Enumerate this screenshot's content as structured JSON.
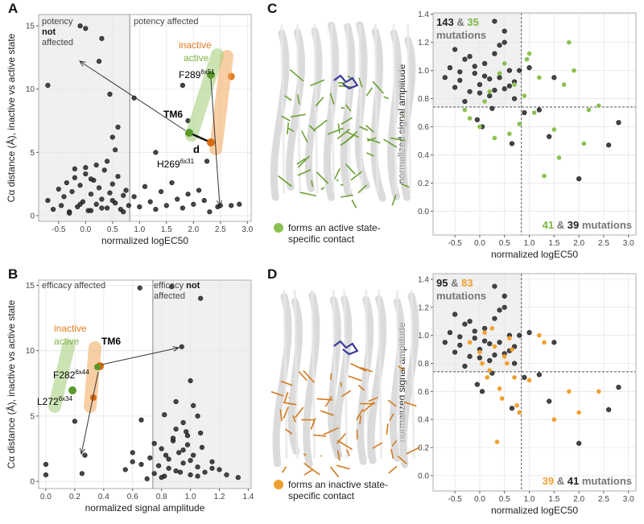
{
  "chart_data": [
    {
      "type": "scatter",
      "panel": "A",
      "x_label": "normalized logEC50",
      "y_label": "Cα distance (Å), inactive vs active state",
      "xlim": [
        -0.87,
        3.07
      ],
      "ylim": [
        -0.45,
        15.9
      ],
      "xticks": [
        -0.5,
        {
          "value": 0,
          "label": "0.0"
        },
        0.5,
        {
          "value": 1,
          "label": "1.0"
        },
        1.5,
        {
          "value": 2,
          "label": "2.0"
        },
        2.5,
        {
          "value": 3,
          "label": "3.0"
        }
      ],
      "yticks": [
        0,
        5,
        10,
        15
      ],
      "grid": true,
      "vline": 0.82,
      "shade": "left",
      "region_labels": [
        {
          "lines": [
            [
              {
                "t": "potency"
              }
            ],
            [
              {
                "b": "not"
              }
            ],
            [
              {
                "t": "affected"
              }
            ]
          ]
        },
        {
          "lines": [
            [
              {
                "t": "potency affected"
              }
            ]
          ]
        }
      ],
      "annotations": {
        "inactive": "inactive",
        "active": "active",
        "res_top": {
          "name": "F289",
          "sup": "6x51"
        },
        "helix": "TM6",
        "dist": "d",
        "res_bottom": {
          "name": "H269",
          "sup": "6x31"
        }
      },
      "series": [
        {
          "color": "#333333",
          "x": [
            -0.7,
            -0.6,
            -0.5,
            -0.45,
            -0.4,
            -0.35,
            -0.3,
            -0.25,
            -0.2,
            -0.15,
            -0.1,
            -0.05,
            0,
            0.05,
            0.1,
            0.15,
            0.2,
            0.25,
            0.3,
            0.35,
            0.4,
            0.45,
            0.5,
            0.55,
            0.6,
            0.65,
            0.7,
            0.75,
            0.8,
            -0.3,
            -0.1,
            0.1,
            0.3,
            0.5,
            0.7,
            0.9,
            1.0,
            1.1,
            1.2,
            1.3,
            1.4,
            1.5,
            1.6,
            1.7,
            1.8,
            1.9,
            2.0,
            2.1,
            2.2,
            -0.1,
            0,
            0.3,
            -0.7,
            0.25,
            0.9,
            0.45,
            1.8,
            1.9,
            2.25,
            2.7,
            2.45,
            2.5,
            2.85,
            2.3,
            0.6,
            0.5,
            0.55,
            1.3,
            0.2,
            0,
            -0.2,
            0.4,
            0.1
          ],
          "values": [
            1.2,
            0.5,
            2.1,
            0.8,
            1.5,
            2.6,
            0.3,
            1.9,
            3.0,
            0.7,
            2.4,
            1.1,
            3.3,
            0.4,
            1.7,
            2.8,
            0.9,
            2.2,
            1.3,
            3.6,
            0.6,
            1.8,
            2.5,
            1.0,
            3.1,
            0.5,
            1.6,
            2.0,
            0.8,
            0.2,
            0.9,
            0.4,
            0.6,
            1.2,
            0.3,
            1.5,
            0.7,
            2.3,
            1.1,
            0.5,
            1.9,
            0.8,
            2.6,
            1.3,
            0.6,
            1.7,
            0.9,
            2.0,
            1.2,
            15.0,
            14.8,
            14.0,
            10.3,
            12.2,
            9.3,
            9.6,
            10.3,
            7.5,
            4.3,
            0.8,
            0.7,
            0.8,
            0.9,
            0.3,
            7.0,
            6.2,
            5.2,
            5.0,
            4.0,
            3.8,
            3.7,
            4.3,
            2.9
          ]
        },
        {
          "color": "#e07b20",
          "x": [
            2.7
          ],
          "values": [
            11
          ]
        }
      ]
    },
    {
      "type": "scatter",
      "panel": "B",
      "x_label": "normalized signal amplitude",
      "y_label": "Cα distance (Å), inactive vs active state",
      "xlim": [
        -0.05,
        1.42
      ],
      "ylim": [
        -0.55,
        15.4
      ],
      "xticks": [
        {
          "value": 0,
          "label": "0.0"
        },
        0.2,
        0.4,
        0.6,
        0.8,
        {
          "value": 1,
          "label": "1.0"
        },
        1.2,
        1.4
      ],
      "yticks": [
        0,
        5,
        10,
        15
      ],
      "grid": true,
      "vline": 0.74,
      "shade": "right",
      "region_labels": [
        {
          "lines": [
            [
              {
                "t": "efficacy affected"
              }
            ]
          ]
        },
        {
          "lines": [
            [
              {
                "t": "efficacy "
              },
              {
                "b": "not"
              }
            ],
            [
              {
                "t": "affected"
              }
            ]
          ]
        }
      ],
      "annotations": {
        "inactive": "inactive",
        "active": "active",
        "helix": "TM6",
        "res_top": {
          "name": "F282",
          "sup": "6x44"
        },
        "res_bottom": {
          "name": "L272",
          "sup": "6x34"
        }
      },
      "series": [
        {
          "color": "#333333",
          "x": [
            0,
            0,
            0.25,
            0.27,
            0.2,
            0.55,
            0.6,
            0.65,
            0.72,
            0.75,
            0.78,
            0.8,
            0.82,
            0.85,
            0.88,
            0.9,
            0.92,
            0.95,
            0.97,
            1.0,
            1.02,
            1.05,
            1.08,
            1.1,
            1.15,
            1.2,
            0.75,
            0.8,
            0.85,
            0.9,
            0.95,
            1.0,
            1.05,
            0.82,
            0.88,
            0.93,
            0.98,
            0.7,
            0.66,
            0.87,
            0.94,
            1.0,
            1.07,
            0.66,
            0.9,
            1.02,
            1.05,
            1.07,
            0.95,
            0.98,
            1.15,
            1.25,
            1.33,
            0.83,
            0.6
          ],
          "values": [
            1.3,
            0.5,
            0.6,
            2.0,
            4.6,
            0.9,
            2.2,
            14.8,
            1.8,
            0.6,
            1.2,
            2.5,
            0.4,
            1.7,
            3.1,
            0.8,
            2.2,
            1.4,
            3.8,
            0.5,
            2.0,
            1.1,
            2.6,
            0.7,
            1.5,
            0.9,
            2.9,
            0.3,
            1.0,
            4.0,
            2.4,
            1.6,
            0.4,
            5.1,
            3.3,
            0.7,
            2.8,
            0.2,
            1.3,
            14.9,
            10.3,
            7.7,
            14.0,
            4.7,
            6.1,
            5.8,
            5.0,
            3.7,
            4.5,
            3.5,
            1.0,
            0.5,
            0.3,
            2.0,
            1.5
          ]
        }
      ]
    },
    {
      "type": "scatter",
      "panel": "C",
      "x_label": "normalized logEC50",
      "y_label": "normalized signal amplitude",
      "xlim": [
        -0.94,
        3.15
      ],
      "ylim": [
        -0.17,
        1.41
      ],
      "xticks": [
        -0.5,
        {
          "value": 0,
          "label": "0.0"
        },
        0.5,
        {
          "value": 1,
          "label": "1.0"
        },
        1.5,
        {
          "value": 2,
          "label": "2.0"
        },
        2.5,
        {
          "value": 3,
          "label": "3.0"
        }
      ],
      "yticks": [
        {
          "value": 0,
          "label": "0.0"
        },
        0.2,
        0.4,
        0.6,
        0.8,
        {
          "value": 1,
          "label": "1.0"
        },
        1.2,
        1.4
      ],
      "grid": true,
      "vline": 0.84,
      "hline": 0.74,
      "shade": "top-left",
      "count_labels": [
        {
          "values": [
            143,
            35
          ],
          "colors": [
            "#222222",
            "#7cb342"
          ],
          "joiner": "&",
          "unit": "mutations"
        },
        {
          "values": [
            41,
            39
          ],
          "colors": [
            "#7cb342",
            "#222222"
          ],
          "joiner": "&",
          "unit": "mutations"
        }
      ],
      "series": [
        {
          "color": "#333333",
          "x": [
            -0.7,
            -0.6,
            -0.5,
            -0.4,
            -0.3,
            -0.2,
            -0.1,
            0,
            0.1,
            0.2,
            0.3,
            0.4,
            0.5,
            0.6,
            0.7,
            -0.5,
            -0.3,
            -0.1,
            0.1,
            0.3,
            0.5,
            0.7,
            -0.4,
            -0.2,
            0,
            0.2,
            0.4,
            0.6,
            0.8,
            0.3,
            0.5,
            0.65,
            1.0,
            1.2,
            1.5,
            2.6,
            2.8,
            2.0,
            1.4,
            0.9,
            0.05,
            0.25,
            -0.05
          ],
          "values": [
            0.95,
            1.02,
            0.88,
            0.93,
            1.08,
            0.85,
            0.98,
            0.9,
            1.05,
            0.82,
            1.12,
            0.95,
            0.87,
            1.0,
            0.92,
            1.15,
            0.78,
            1.03,
            0.96,
            0.86,
            1.2,
            0.8,
            0.99,
            1.1,
            0.84,
            0.94,
            1.18,
            0.89,
            1.0,
            1.35,
            1.28,
            0.48,
            1.02,
            0.72,
            0.95,
            0.47,
            0.63,
            0.23,
            0.53,
            0.7,
            0.6,
            0.73,
            0.65
          ]
        },
        {
          "name": "forms an active state-specific contact",
          "color": "#8cc152",
          "x": [
            -0.3,
            0,
            0.2,
            0.4,
            0.6,
            0.8,
            1.0,
            1.2,
            1.5,
            1.7,
            1.9,
            2.1,
            2.4,
            1.3,
            0.9,
            0.5,
            0.1,
            -0.2,
            1.6,
            1.1,
            0.7,
            0.3,
            1.8,
            0.95,
            2.2
          ],
          "values": [
            0.72,
            0.6,
            0.85,
            0.98,
            0.55,
            0.62,
            1.12,
            0.95,
            0.58,
            0.9,
            1.0,
            0.48,
            0.75,
            0.25,
            0.82,
            1.05,
            0.78,
            0.66,
            0.38,
            0.7,
            0.9,
            0.52,
            1.2,
            1.08,
            0.72
          ]
        }
      ]
    },
    {
      "type": "scatter",
      "panel": "D",
      "x_label": "normalized logEC50",
      "y_label": "normalized signal amplitude",
      "xlim": [
        -0.94,
        3.15
      ],
      "ylim": [
        -0.11,
        1.44
      ],
      "xticks": [
        -0.5,
        {
          "value": 0,
          "label": "0.0"
        },
        0.5,
        {
          "value": 1,
          "label": "1.0"
        },
        1.5,
        {
          "value": 2,
          "label": "2.0"
        },
        2.5,
        {
          "value": 3,
          "label": "3.0"
        }
      ],
      "yticks": [
        {
          "value": 0,
          "label": "0.0"
        },
        0.2,
        0.4,
        0.6,
        0.8,
        {
          "value": 1,
          "label": "1.0"
        },
        1.2,
        1.4
      ],
      "grid": true,
      "vline": 0.84,
      "hline": 0.74,
      "shade": "top-left",
      "count_labels": [
        {
          "values": [
            95,
            83
          ],
          "colors": [
            "#222222",
            "#f0a030"
          ],
          "joiner": "&",
          "unit": "mutations"
        },
        {
          "values": [
            39,
            41
          ],
          "colors": [
            "#f0a030",
            "#222222"
          ],
          "joiner": "&",
          "unit": "mutations"
        }
      ],
      "series": [
        {
          "color": "#333333",
          "x": [
            -0.7,
            -0.6,
            -0.5,
            -0.4,
            -0.3,
            -0.2,
            -0.1,
            0,
            0.1,
            0.2,
            0.3,
            0.4,
            0.5,
            0.6,
            0.7,
            -0.5,
            -0.3,
            -0.1,
            0.1,
            0.3,
            0.5,
            0.7,
            -0.4,
            -0.2,
            0,
            0.2,
            0.4,
            0.6,
            0.8,
            0.3,
            0.5,
            0.65,
            1.0,
            1.2,
            1.5,
            2.6,
            2.8,
            2.0,
            1.4,
            0.9,
            0.05,
            0.25,
            -0.05
          ],
          "values": [
            0.95,
            1.02,
            0.88,
            0.93,
            1.08,
            0.85,
            0.98,
            0.9,
            1.05,
            0.82,
            1.12,
            0.95,
            0.87,
            1.0,
            0.92,
            1.15,
            0.78,
            1.03,
            0.96,
            0.86,
            1.2,
            0.8,
            0.99,
            1.1,
            0.84,
            0.94,
            1.18,
            0.89,
            1.0,
            1.35,
            1.28,
            0.48,
            1.02,
            0.72,
            0.95,
            0.47,
            0.63,
            0.23,
            0.53,
            0.7,
            0.6,
            0.73,
            0.65
          ]
        },
        {
          "name": "forms an inactive state-specific contact",
          "color": "#f0a030",
          "x": [
            -0.2,
            0,
            0.1,
            0.2,
            0.3,
            0.4,
            0.5,
            0.6,
            0.7,
            0.8,
            0.05,
            0.25,
            0.45,
            0.65,
            1.0,
            1.2,
            1.5,
            1.8,
            2.0,
            2.4,
            0.35,
            0.55,
            1.3,
            0.15,
            0.75
          ],
          "values": [
            0.95,
            0.88,
            1.02,
            0.75,
            0.92,
            0.62,
            0.85,
            0.98,
            0.7,
            0.45,
            0.8,
            1.05,
            0.55,
            0.9,
            0.68,
            1.0,
            0.4,
            0.6,
            0.45,
            0.6,
            0.24,
            0.8,
            0.95,
            0.7,
            0.5
          ]
        }
      ]
    }
  ]
}
